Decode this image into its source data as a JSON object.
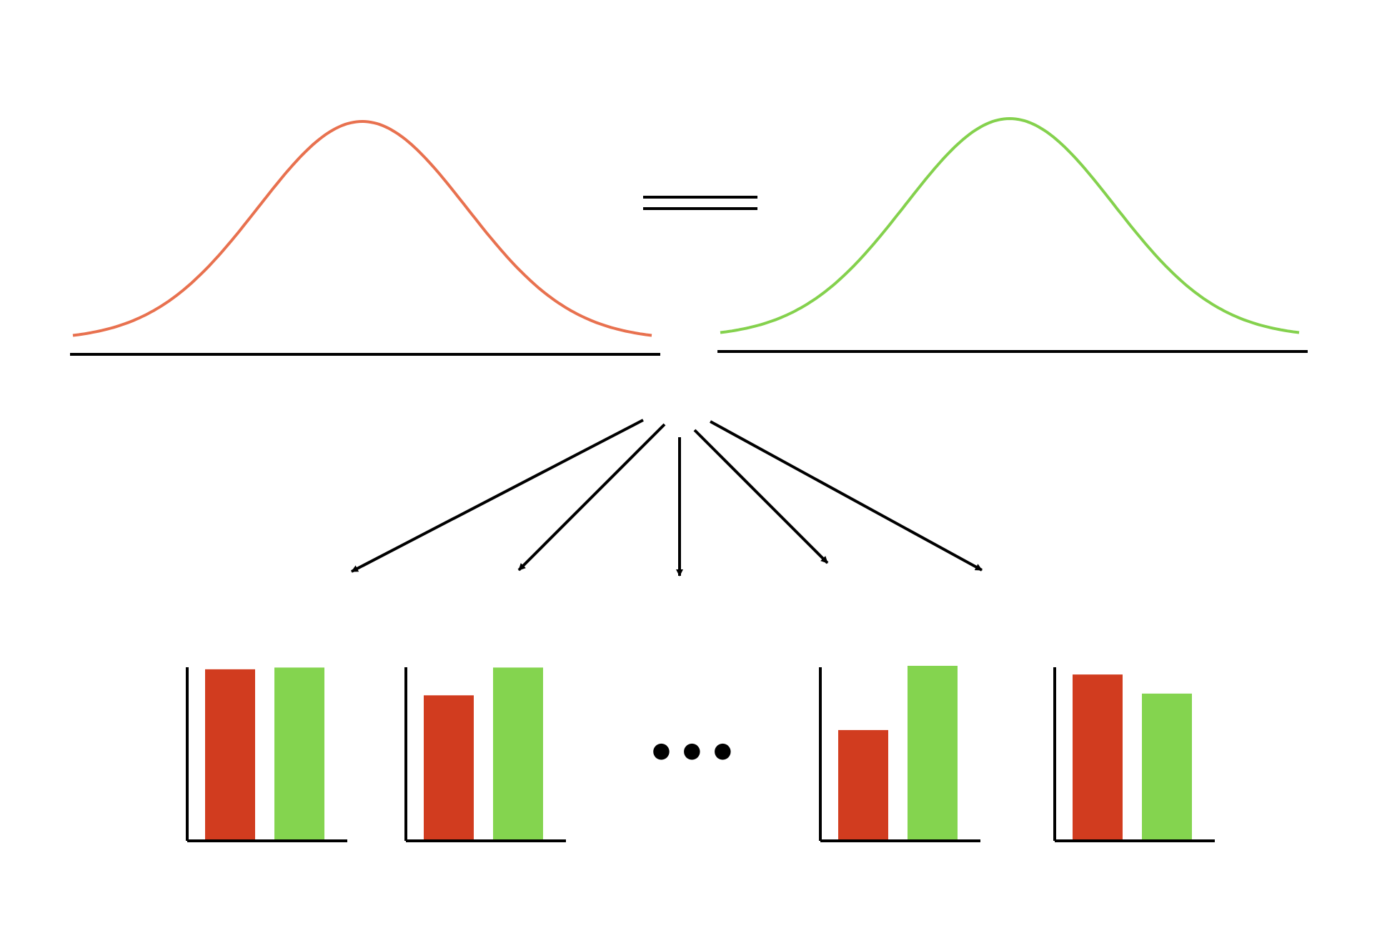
{
  "colors": {
    "curve_left": "#e8714f",
    "curve_right": "#84d14d",
    "bar_red": "#d13c1f",
    "bar_green": "#84d44f",
    "line": "#000000"
  },
  "equals_sign": "=",
  "ellipsis": "•••",
  "chart_data": [
    {
      "type": "bar",
      "categories": [
        "red",
        "green"
      ],
      "values": [
        0.98,
        0.99
      ],
      "ylim": [
        0,
        1.2
      ]
    },
    {
      "type": "bar",
      "categories": [
        "red",
        "green"
      ],
      "values": [
        0.83,
        0.99
      ],
      "ylim": [
        0,
        1.2
      ]
    },
    {
      "type": "bar",
      "categories": [
        "red",
        "green"
      ],
      "values": [
        0.63,
        1.0
      ],
      "ylim": [
        0,
        1.2
      ]
    },
    {
      "type": "bar",
      "categories": [
        "red",
        "green"
      ],
      "values": [
        0.95,
        0.84
      ],
      "ylim": [
        0,
        1.2
      ]
    }
  ]
}
